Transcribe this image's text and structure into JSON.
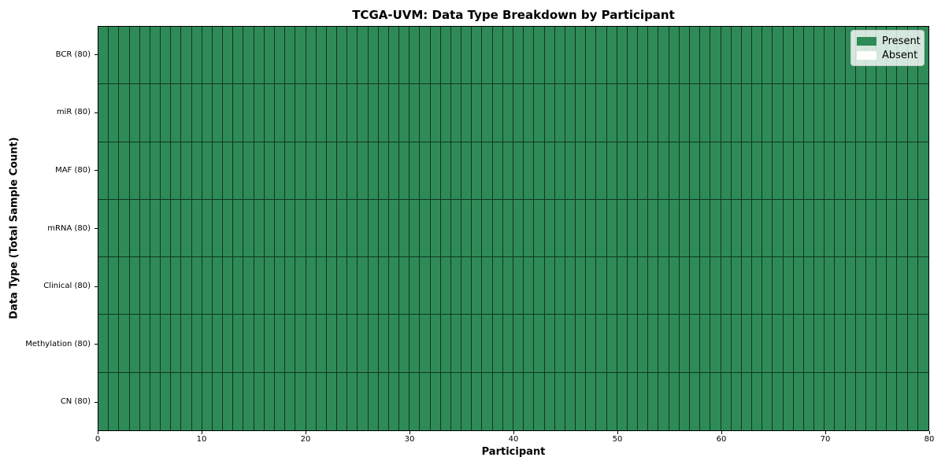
{
  "chart_data": {
    "type": "heatmap",
    "title": "TCGA-UVM: Data Type Breakdown by Participant",
    "xlabel": "Participant",
    "ylabel": "Data Type (Total Sample Count)",
    "rows": [
      {
        "label": "BCR (80)",
        "present": 80,
        "absent": 0
      },
      {
        "label": "miR (80)",
        "present": 80,
        "absent": 0
      },
      {
        "label": "MAF (80)",
        "present": 80,
        "absent": 0
      },
      {
        "label": "mRNA (80)",
        "present": 80,
        "absent": 0
      },
      {
        "label": "Clinical (80)",
        "present": 80,
        "absent": 0
      },
      {
        "label": "Methylation (80)",
        "present": 80,
        "absent": 0
      },
      {
        "label": "CN (80)",
        "present": 80,
        "absent": 0
      }
    ],
    "n_participants": 80,
    "xlim": [
      0,
      80
    ],
    "x_ticks": [
      0,
      10,
      20,
      30,
      40,
      50,
      60,
      70,
      80
    ],
    "legend": {
      "position": "upper-right",
      "entries": [
        {
          "label": "Present",
          "color": "#2e8b57"
        },
        {
          "label": "Absent",
          "color": "#ffffff"
        }
      ]
    },
    "colors": {
      "present": "#2e8b57",
      "absent": "#ffffff",
      "cell_edge": "rgba(0,0,0,0.62)",
      "axis": "#000000"
    },
    "grid": "cell-borders"
  }
}
